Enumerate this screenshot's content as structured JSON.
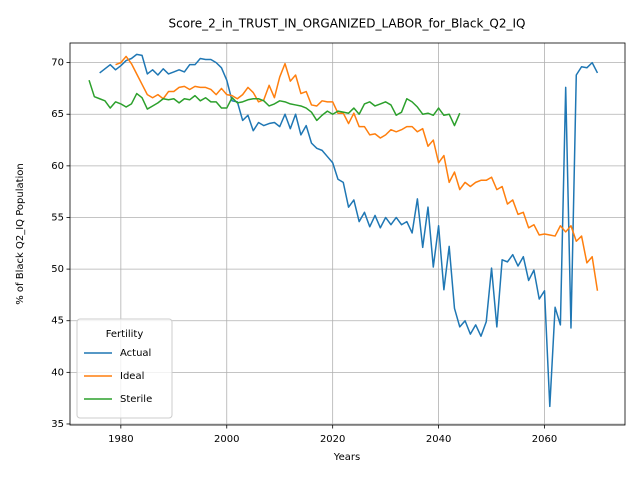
{
  "chart_data": {
    "type": "line",
    "title": "Score_2_in_TRUST_IN_ORGANIZED_LABOR_for_Black_Q2_IQ",
    "x_label": "Years",
    "y_label": "% of Black Q2_IQ Population",
    "legend_title": "Fertility",
    "legend": "lower left",
    "grid": true,
    "xlim": [
      1970.4,
      2075.2
    ],
    "ylim": [
      34.9,
      71.9
    ],
    "xticks": [
      1980,
      2000,
      2020,
      2040,
      2060
    ],
    "yticks": [
      35,
      40,
      45,
      50,
      55,
      60,
      65,
      70
    ],
    "x": [
      1974,
      1975,
      1976,
      1977,
      1978,
      1979,
      1980,
      1981,
      1982,
      1983,
      1984,
      1985,
      1986,
      1987,
      1988,
      1989,
      1990,
      1991,
      1992,
      1993,
      1994,
      1995,
      1996,
      1997,
      1998,
      1999,
      2000,
      2001,
      2002,
      2003,
      2004,
      2005,
      2006,
      2007,
      2008,
      2009,
      2010,
      2011,
      2012,
      2013,
      2014,
      2015,
      2016,
      2017,
      2018,
      2019,
      2020,
      2021,
      2022,
      2023,
      2024,
      2025,
      2026,
      2027,
      2028,
      2029,
      2030,
      2031,
      2032,
      2033,
      2034,
      2035,
      2036,
      2037,
      2038,
      2039,
      2040,
      2041,
      2042,
      2043,
      2044,
      2045,
      2046,
      2047,
      2048,
      2049,
      2050,
      2051,
      2052,
      2053,
      2054,
      2055,
      2056,
      2057,
      2058,
      2059,
      2060,
      2061,
      2062,
      2063,
      2064,
      2065,
      2066,
      2067,
      2068,
      2069,
      2070
    ],
    "series": [
      {
        "name": "Actual",
        "color": "#1f77b4",
        "values": [
          null,
          null,
          69.0,
          69.4,
          69.8,
          69.3,
          69.7,
          70.2,
          70.4,
          70.8,
          70.7,
          68.9,
          69.3,
          68.8,
          69.4,
          68.9,
          69.1,
          69.3,
          69.1,
          69.8,
          69.8,
          70.4,
          70.3,
          70.3,
          70.0,
          69.5,
          68.3,
          66.3,
          66.2,
          64.4,
          64.9,
          63.4,
          64.2,
          63.9,
          64.1,
          64.2,
          63.8,
          65.0,
          63.6,
          65.0,
          63.0,
          63.9,
          62.2,
          61.7,
          61.5,
          60.9,
          60.3,
          58.7,
          58.4,
          56.0,
          56.7,
          54.6,
          55.5,
          54.1,
          55.2,
          54.0,
          55.0,
          54.3,
          55.0,
          54.3,
          54.6,
          53.5,
          56.8,
          52.1,
          56.0,
          50.2,
          54.2,
          48.0,
          52.2,
          46.2,
          44.4,
          45.0,
          43.7,
          44.6,
          43.5,
          44.9,
          50.1,
          44.4,
          50.9,
          50.7,
          51.4,
          50.3,
          51.2,
          48.9,
          49.9,
          47.1,
          47.9,
          36.7,
          46.3,
          44.6,
          67.6,
          44.3,
          68.8,
          69.6,
          69.5,
          70.0,
          69.0
        ]
      },
      {
        "name": "Ideal",
        "color": "#ff7f0e",
        "values": [
          null,
          null,
          null,
          null,
          null,
          69.8,
          70.0,
          70.6,
          69.9,
          68.9,
          67.9,
          66.9,
          66.6,
          66.9,
          66.5,
          67.2,
          67.2,
          67.6,
          67.7,
          67.4,
          67.7,
          67.6,
          67.6,
          67.4,
          66.9,
          67.5,
          66.9,
          66.8,
          66.5,
          66.9,
          67.6,
          67.1,
          66.2,
          66.4,
          67.8,
          66.6,
          68.6,
          69.9,
          68.2,
          68.8,
          67.0,
          67.2,
          65.9,
          65.8,
          66.3,
          66.2,
          66.2,
          65.1,
          65.1,
          64.1,
          65.1,
          63.8,
          63.8,
          63.0,
          63.1,
          62.7,
          63.0,
          63.5,
          63.3,
          63.5,
          63.8,
          63.8,
          63.3,
          63.6,
          61.9,
          62.5,
          60.3,
          61.0,
          58.4,
          59.4,
          57.7,
          58.4,
          58.0,
          58.4,
          58.6,
          58.6,
          58.9,
          57.7,
          58.0,
          56.3,
          56.7,
          55.3,
          55.5,
          54.0,
          54.3,
          53.3,
          53.4,
          53.3,
          53.2,
          54.2,
          53.6,
          54.2,
          52.7,
          53.2,
          50.6,
          51.2,
          47.9
        ]
      },
      {
        "name": "Sterile",
        "color": "#2ca02c",
        "values": [
          68.3,
          66.7,
          66.5,
          66.3,
          65.6,
          66.2,
          66.0,
          65.7,
          66.0,
          67.0,
          66.6,
          65.5,
          65.8,
          66.1,
          66.5,
          66.4,
          66.5,
          66.1,
          66.5,
          66.4,
          66.8,
          66.3,
          66.6,
          66.2,
          66.2,
          65.6,
          65.6,
          66.6,
          66.1,
          66.2,
          66.4,
          66.5,
          66.5,
          66.3,
          65.8,
          66.0,
          66.3,
          66.2,
          66.0,
          65.9,
          65.8,
          65.6,
          65.2,
          64.4,
          64.9,
          65.3,
          65.0,
          65.3,
          65.2,
          65.1,
          65.6,
          65.0,
          66.0,
          66.2,
          65.8,
          66.0,
          66.2,
          65.9,
          64.9,
          65.2,
          66.5,
          66.2,
          65.7,
          65.0,
          65.1,
          64.9,
          65.6,
          64.9,
          65.0,
          63.9,
          65.1,
          null,
          null,
          null,
          null,
          null,
          null,
          null,
          null,
          null,
          null,
          null,
          null,
          null,
          null,
          null,
          null,
          null,
          null,
          null,
          null,
          null,
          null,
          null,
          null,
          null,
          null
        ]
      }
    ]
  }
}
